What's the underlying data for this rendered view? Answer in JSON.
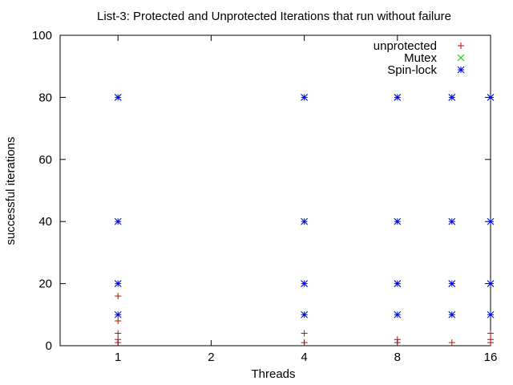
{
  "chart_data": {
    "type": "scatter",
    "title": "List-3: Protected and Unprotected Iterations that run without failure",
    "xlabel": "Threads",
    "ylabel": "successful iterations",
    "x_scale": "log2",
    "xlim": [
      0.65,
      16
    ],
    "ylim": [
      0,
      100
    ],
    "x_ticks": [
      1,
      2,
      4,
      8,
      16
    ],
    "y_ticks": [
      0,
      20,
      40,
      60,
      80,
      100
    ],
    "legend_position": "top-right",
    "grid": false,
    "series": [
      {
        "name": "unprotected",
        "marker": "plus",
        "color": "#cc0000",
        "points": [
          {
            "x": 1,
            "y": 1
          },
          {
            "x": 1,
            "y": 2
          },
          {
            "x": 1,
            "y": 4
          },
          {
            "x": 1,
            "y": 8
          },
          {
            "x": 1,
            "y": 16
          },
          {
            "x": 4,
            "y": 1
          },
          {
            "x": 4,
            "y": 4
          },
          {
            "x": 8,
            "y": 1
          },
          {
            "x": 8,
            "y": 2
          },
          {
            "x": 12,
            "y": 1
          },
          {
            "x": 16,
            "y": 1
          },
          {
            "x": 16,
            "y": 2
          },
          {
            "x": 16,
            "y": 4
          }
        ]
      },
      {
        "name": "Mutex",
        "marker": "cross",
        "color": "#00cc00",
        "points": [
          {
            "x": 1,
            "y": 10
          },
          {
            "x": 1,
            "y": 20
          },
          {
            "x": 1,
            "y": 40
          },
          {
            "x": 1,
            "y": 80
          },
          {
            "x": 4,
            "y": 10
          },
          {
            "x": 4,
            "y": 20
          },
          {
            "x": 4,
            "y": 40
          },
          {
            "x": 4,
            "y": 80
          },
          {
            "x": 8,
            "y": 10
          },
          {
            "x": 8,
            "y": 20
          },
          {
            "x": 8,
            "y": 40
          },
          {
            "x": 8,
            "y": 80
          },
          {
            "x": 12,
            "y": 10
          },
          {
            "x": 12,
            "y": 20
          },
          {
            "x": 12,
            "y": 40
          },
          {
            "x": 12,
            "y": 80
          },
          {
            "x": 16,
            "y": 10
          },
          {
            "x": 16,
            "y": 20
          },
          {
            "x": 16,
            "y": 40
          },
          {
            "x": 16,
            "y": 80
          }
        ]
      },
      {
        "name": "Spin-lock",
        "marker": "star",
        "color": "#0000ee",
        "points": [
          {
            "x": 1,
            "y": 10
          },
          {
            "x": 1,
            "y": 20
          },
          {
            "x": 1,
            "y": 40
          },
          {
            "x": 1,
            "y": 80
          },
          {
            "x": 4,
            "y": 10
          },
          {
            "x": 4,
            "y": 20
          },
          {
            "x": 4,
            "y": 40
          },
          {
            "x": 4,
            "y": 80
          },
          {
            "x": 8,
            "y": 10
          },
          {
            "x": 8,
            "y": 20
          },
          {
            "x": 8,
            "y": 40
          },
          {
            "x": 8,
            "y": 80
          },
          {
            "x": 12,
            "y": 10
          },
          {
            "x": 12,
            "y": 20
          },
          {
            "x": 12,
            "y": 40
          },
          {
            "x": 12,
            "y": 80
          },
          {
            "x": 16,
            "y": 10
          },
          {
            "x": 16,
            "y": 20
          },
          {
            "x": 16,
            "y": 40
          },
          {
            "x": 16,
            "y": 80
          }
        ]
      }
    ]
  }
}
